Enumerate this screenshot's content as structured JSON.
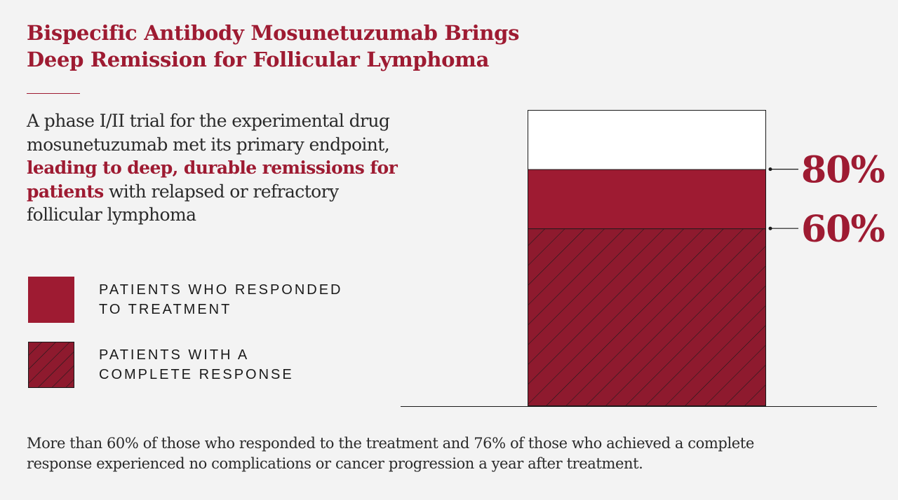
{
  "title_lines": [
    "Bispecific Antibody Mosunetuzumab Brings",
    "Deep Remission for Follicular Lymphoma"
  ],
  "intro": {
    "before": "A phase I/II trial for the experimental drug mosunetuzumab met its primary endpoint, ",
    "highlight": "leading to deep, durable remissions for patients",
    "after": " with relapsed or refractory follicular lymphoma"
  },
  "legend": [
    {
      "lines": [
        "PATIENTS WHO RESPONDED",
        "TO TREATMENT"
      ],
      "pattern": "solid"
    },
    {
      "lines": [
        "PATIENTS WITH A",
        "COMPLETE RESPONSE"
      ],
      "pattern": "hatched"
    }
  ],
  "footnote_lines": [
    "More than 60% of those who responded to the treatment and 76% of those who achieved a complete",
    "response experienced no complications or cancer progression a year after treatment."
  ],
  "colors": {
    "accent": "#9e1b32",
    "hatch_fill": "#8e1a2e",
    "background": "#f3f3f3",
    "bar_outline": "#1a1a1a"
  },
  "chart_data": {
    "type": "bar",
    "orientation": "vertical-stacked-overlay",
    "ylim": [
      0,
      100
    ],
    "series": [
      {
        "name": "PATIENTS WHO RESPONDED TO TREATMENT",
        "value": 80,
        "label": "80%",
        "pattern": "solid"
      },
      {
        "name": "PATIENTS WITH A COMPLETE RESPONSE",
        "value": 60,
        "label": "60%",
        "pattern": "hatched"
      }
    ],
    "grid": false,
    "legend_placement": "left"
  }
}
